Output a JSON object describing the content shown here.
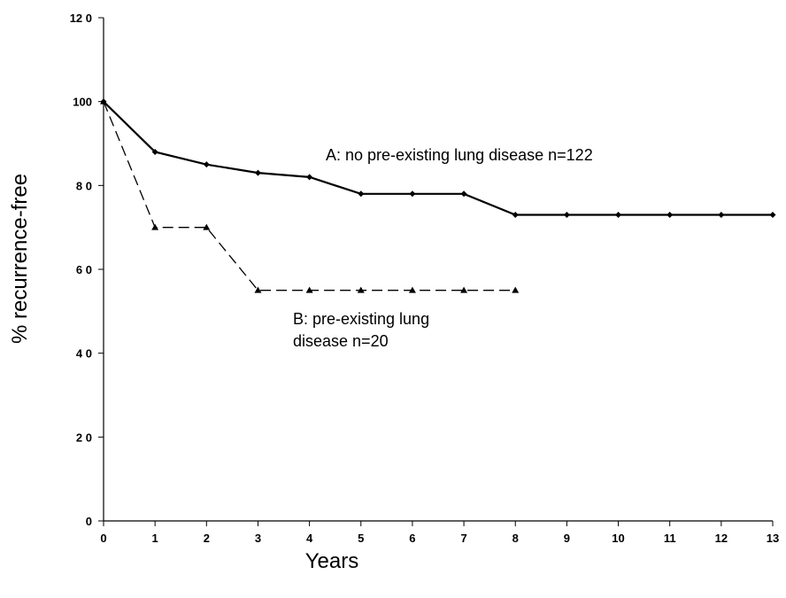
{
  "chart_data": {
    "type": "line",
    "xlabel": "Years",
    "ylabel": "% recurrence-free",
    "xlim": [
      0,
      13
    ],
    "ylim": [
      0,
      120
    ],
    "x_ticks": [
      0,
      1,
      2,
      3,
      4,
      5,
      6,
      7,
      8,
      9,
      10,
      11,
      12,
      13
    ],
    "y_ticks": [
      0,
      20,
      40,
      60,
      80,
      100,
      120
    ],
    "y_tick_labels": [
      "0",
      "2 0",
      "4 0",
      "6 0",
      "8 0",
      "100",
      "12 0"
    ],
    "grid": false,
    "series": [
      {
        "key": "A",
        "style": "solid",
        "marker": "diamond",
        "color": "#000000",
        "x": [
          0,
          1,
          2,
          3,
          4,
          5,
          6,
          7,
          8,
          9,
          10,
          11,
          12,
          13
        ],
        "y": [
          100,
          88,
          85,
          83,
          82,
          78,
          78,
          78,
          73,
          73,
          73,
          73,
          73,
          73
        ],
        "step_after": [
          false,
          false,
          false,
          false,
          false,
          false,
          false,
          false,
          false,
          false,
          false,
          false,
          false,
          false
        ]
      },
      {
        "key": "B",
        "style": "dashed",
        "marker": "triangle",
        "color": "#000000",
        "x": [
          0,
          1,
          2,
          3,
          4,
          5,
          6,
          7,
          8
        ],
        "y": [
          100,
          70,
          70,
          55,
          55,
          55,
          55,
          55,
          55
        ]
      }
    ],
    "annotations": [
      {
        "key": "A",
        "lines": [
          "A: no pre-existing lung disease n=122"
        ]
      },
      {
        "key": "B",
        "lines": [
          "B: pre-existing lung",
          "disease n=20"
        ]
      }
    ]
  }
}
